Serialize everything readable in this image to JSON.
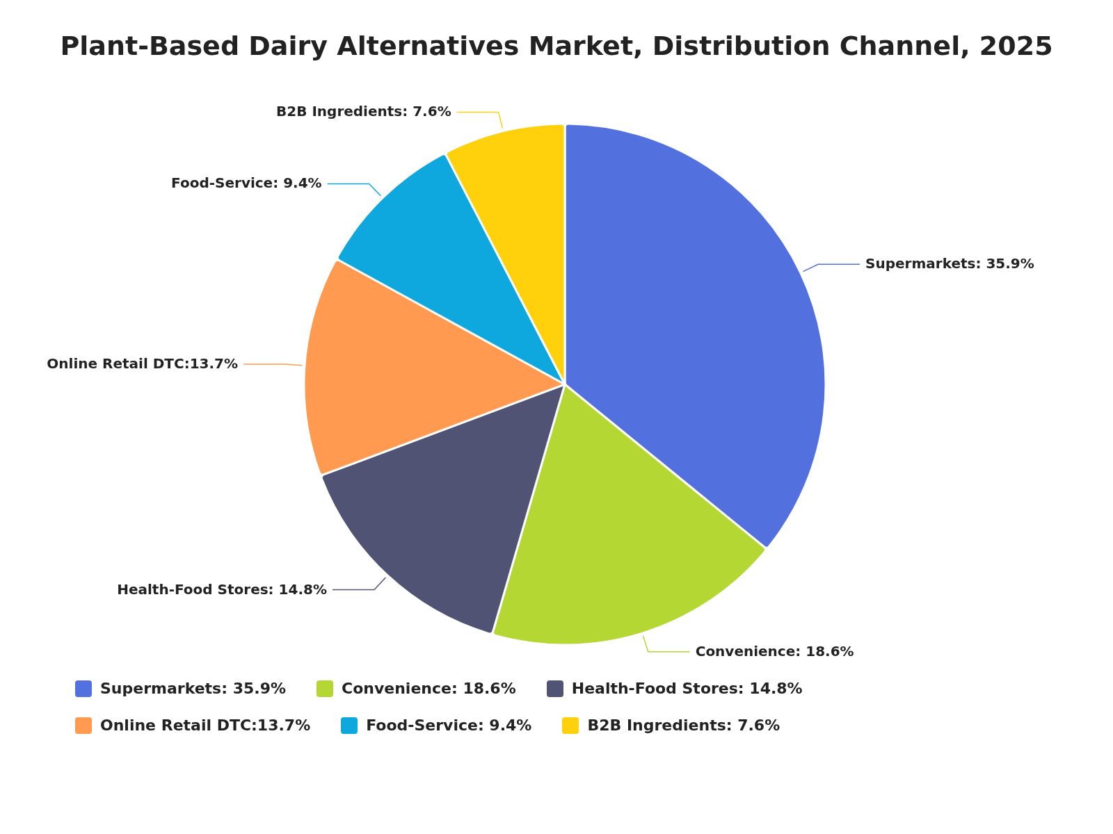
{
  "chart_data": {
    "type": "pie",
    "title": "Plant-Based Dairy Alternatives Market, Distribution Channel, 2025",
    "categories": [
      "Supermarkets: 35.9%",
      "Convenience: 18.6%",
      "Health-Food Stores: 14.8%",
      "Online Retail DTC:13.7%",
      "Food-Service: 9.4%",
      "B2B Ingredients: 7.6%"
    ],
    "values": [
      35.9,
      18.6,
      14.8,
      13.7,
      9.4,
      7.6
    ],
    "colors": [
      "#5271de",
      "#b5d733",
      "#505373",
      "#ff9a50",
      "#0ea8de",
      "#ffd00c"
    ],
    "legend": "bottom"
  }
}
